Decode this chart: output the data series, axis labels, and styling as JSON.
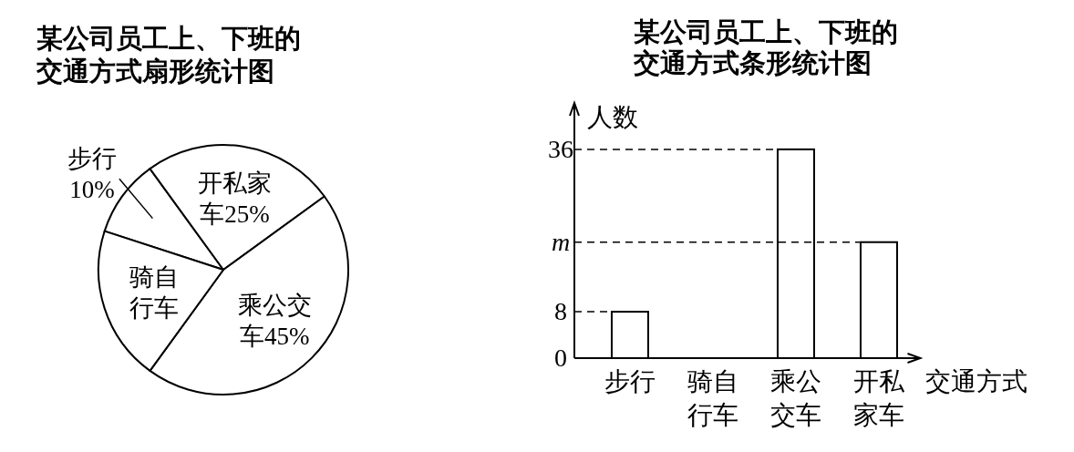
{
  "chart_data": [
    {
      "type": "pie",
      "title": "某公司员工上、下班的交通方式扇形统计图",
      "categories": [
        "步行",
        "开私家车",
        "乘公交车",
        "骑自行车"
      ],
      "values": [
        10,
        25,
        45,
        20
      ],
      "value_labels": [
        "10%",
        "25%",
        "45%",
        null
      ],
      "colors": [
        "#ffffff",
        "#ffffff",
        "#ffffff",
        "#ffffff"
      ]
    },
    {
      "type": "bar",
      "title": "某公司员工上、下班的交通方式条形统计图",
      "ylabel": "人数",
      "xlabel": "交通方式",
      "categories": [
        "步行",
        "骑自行车",
        "乘公交车",
        "开私家车"
      ],
      "values": [
        8,
        null,
        36,
        20
      ],
      "color": "#ffffff",
      "ylim": [
        0,
        44
      ],
      "yticks": [
        0,
        8,
        {
          "value": 20,
          "label": "m"
        },
        36
      ],
      "ref_lines": [
        {
          "axis": "y",
          "value": 8,
          "line_style": "dashed"
        },
        {
          "axis": "y",
          "value": 20,
          "line_style": "dashed"
        },
        {
          "axis": "y",
          "value": 36,
          "line_style": "dashed"
        }
      ]
    }
  ]
}
